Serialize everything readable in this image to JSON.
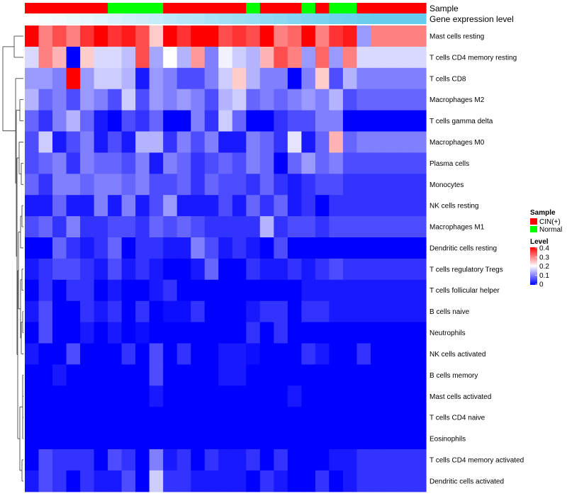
{
  "chart_data": {
    "type": "heatmap",
    "annotation_labels": [
      "Sample",
      "Gene expression level"
    ],
    "legend": {
      "sample_title": "Sample",
      "sample_entries": [
        {
          "label": "CIN(+)",
          "color": "#ff0000"
        },
        {
          "label": "Normal",
          "color": "#00ff00"
        }
      ],
      "level_title": "Level",
      "level_ticks": [
        "0.4",
        "0.3",
        "0.2",
        "0.1",
        "0"
      ],
      "level_range": [
        0,
        0.4
      ],
      "colors": {
        "low": "#0000ff",
        "mid": "#ffffff",
        "high": "#ff0000"
      }
    },
    "sample_groups": [
      "C",
      "C",
      "C",
      "C",
      "C",
      "C",
      "N",
      "N",
      "N",
      "N",
      "C",
      "C",
      "C",
      "C",
      "C",
      "C",
      "N",
      "C",
      "C",
      "C",
      "N",
      "C",
      "N",
      "N",
      "C",
      "C",
      "C",
      "C",
      "C"
    ],
    "expression_level": [
      0.0,
      0.02,
      0.03,
      0.05,
      0.06,
      0.08,
      0.1,
      0.12,
      0.13,
      0.15,
      0.17,
      0.19,
      0.2,
      0.22,
      0.24,
      0.25,
      0.27,
      0.29,
      0.3,
      0.32,
      0.34,
      0.35,
      0.37,
      0.38,
      0.39,
      0.4,
      0.4,
      0.4,
      0.4
    ],
    "rows": [
      {
        "name": "Mast cells resting",
        "values": [
          0.4,
          0.3,
          0.34,
          0.3,
          0.36,
          0.4,
          0.36,
          0.38,
          0.34,
          0.24,
          0.4,
          0.36,
          0.4,
          0.4,
          0.34,
          0.36,
          0.34,
          0.4,
          0.3,
          0.32,
          0.4,
          0.3,
          0.36,
          0.38,
          0.12,
          0.3,
          0.3,
          0.3,
          0.3
        ]
      },
      {
        "name": "T cells CD4 memory resting",
        "values": [
          0.17,
          0.3,
          0.26,
          0.0,
          0.24,
          0.17,
          0.17,
          0.15,
          0.34,
          0.13,
          0.2,
          0.14,
          0.28,
          0.1,
          0.19,
          0.16,
          0.14,
          0.26,
          0.34,
          0.3,
          0.12,
          0.32,
          0.12,
          0.3,
          0.17,
          0.17,
          0.17,
          0.17,
          0.17
        ]
      },
      {
        "name": "T cells CD8",
        "values": [
          0.12,
          0.12,
          0.1,
          0.4,
          0.12,
          0.16,
          0.16,
          0.14,
          0.02,
          0.12,
          0.1,
          0.06,
          0.06,
          0.1,
          0.16,
          0.24,
          0.14,
          0.1,
          0.1,
          0.0,
          0.1,
          0.24,
          0.06,
          0.14,
          0.1,
          0.1,
          0.1,
          0.1,
          0.1
        ]
      },
      {
        "name": "Macrophages M2",
        "values": [
          0.14,
          0.08,
          0.1,
          0.06,
          0.12,
          0.1,
          0.06,
          0.16,
          0.06,
          0.12,
          0.1,
          0.12,
          0.1,
          0.06,
          0.14,
          0.16,
          0.08,
          0.1,
          0.08,
          0.1,
          0.12,
          0.1,
          0.14,
          0.06,
          0.08,
          0.08,
          0.08,
          0.08,
          0.08
        ]
      },
      {
        "name": "T cells gamma delta",
        "values": [
          0.08,
          0.04,
          0.1,
          0.14,
          0.08,
          0.02,
          0.0,
          0.06,
          0.04,
          0.08,
          0.0,
          0.0,
          0.1,
          0.04,
          0.16,
          0.08,
          0.0,
          0.0,
          0.04,
          0.06,
          0.06,
          0.1,
          0.1,
          0.0,
          0.0,
          0.0,
          0.0,
          0.0,
          0.0
        ]
      },
      {
        "name": "Macrophages M0",
        "values": [
          0.06,
          0.16,
          0.02,
          0.06,
          0.1,
          0.02,
          0.06,
          0.02,
          0.14,
          0.14,
          0.04,
          0.1,
          0.06,
          0.1,
          0.02,
          0.02,
          0.1,
          0.08,
          0.04,
          0.18,
          0.02,
          0.08,
          0.26,
          0.08,
          0.1,
          0.1,
          0.1,
          0.1,
          0.1
        ]
      },
      {
        "name": "Plasma cells",
        "values": [
          0.06,
          0.08,
          0.1,
          0.04,
          0.1,
          0.08,
          0.08,
          0.06,
          0.1,
          0.02,
          0.1,
          0.08,
          0.04,
          0.06,
          0.08,
          0.06,
          0.1,
          0.08,
          0.0,
          0.08,
          0.12,
          0.08,
          0.1,
          0.06,
          0.06,
          0.06,
          0.06,
          0.06,
          0.06
        ]
      },
      {
        "name": "Monocytes",
        "values": [
          0.08,
          0.04,
          0.1,
          0.1,
          0.08,
          0.1,
          0.1,
          0.08,
          0.1,
          0.06,
          0.06,
          0.08,
          0.04,
          0.08,
          0.06,
          0.06,
          0.04,
          0.08,
          0.04,
          0.02,
          0.04,
          0.06,
          0.06,
          0.04,
          0.04,
          0.04,
          0.04,
          0.04,
          0.04
        ]
      },
      {
        "name": "NK cells resting",
        "values": [
          0.02,
          0.02,
          0.08,
          0.02,
          0.02,
          0.1,
          0.02,
          0.1,
          0.02,
          0.06,
          0.12,
          0.02,
          0.02,
          0.02,
          0.06,
          0.02,
          0.08,
          0.04,
          0.08,
          0.02,
          0.04,
          0.0,
          0.04,
          0.04,
          0.04,
          0.04,
          0.04,
          0.04,
          0.04
        ]
      },
      {
        "name": "Macrophages M1",
        "values": [
          0.06,
          0.08,
          0.04,
          0.1,
          0.04,
          0.04,
          0.06,
          0.06,
          0.04,
          0.08,
          0.06,
          0.08,
          0.06,
          0.04,
          0.04,
          0.04,
          0.04,
          0.14,
          0.04,
          0.06,
          0.06,
          0.04,
          0.06,
          0.06,
          0.06,
          0.06,
          0.06,
          0.06,
          0.06
        ]
      },
      {
        "name": "Dendritic cells resting",
        "values": [
          0.0,
          0.0,
          0.08,
          0.04,
          0.02,
          0.04,
          0.08,
          0.0,
          0.04,
          0.04,
          0.02,
          0.02,
          0.1,
          0.06,
          0.02,
          0.04,
          0.02,
          0.0,
          0.06,
          0.0,
          0.0,
          0.0,
          0.0,
          0.0,
          0.0,
          0.0,
          0.0,
          0.0,
          0.0
        ]
      },
      {
        "name": "T cells regulatory  Tregs",
        "values": [
          0.02,
          0.04,
          0.06,
          0.06,
          0.04,
          0.02,
          0.06,
          0.02,
          0.04,
          0.02,
          0.0,
          0.0,
          0.02,
          0.08,
          0.0,
          0.0,
          0.04,
          0.02,
          0.02,
          0.04,
          0.02,
          0.04,
          0.06,
          0.04,
          0.04,
          0.04,
          0.04,
          0.04,
          0.04
        ]
      },
      {
        "name": "T cells follicular helper",
        "values": [
          0.0,
          0.04,
          0.0,
          0.04,
          0.04,
          0.0,
          0.02,
          0.0,
          0.0,
          0.02,
          0.04,
          0.0,
          0.0,
          0.0,
          0.0,
          0.0,
          0.0,
          0.0,
          0.0,
          0.0,
          0.02,
          0.02,
          0.02,
          0.02,
          0.02,
          0.02,
          0.02,
          0.02,
          0.02
        ]
      },
      {
        "name": "B cells naive",
        "values": [
          0.02,
          0.06,
          0.0,
          0.0,
          0.04,
          0.02,
          0.04,
          0.0,
          0.04,
          0.0,
          0.01,
          0.01,
          0.04,
          0.0,
          0.0,
          0.0,
          0.02,
          0.04,
          0.04,
          0.0,
          0.04,
          0.04,
          0.02,
          0.02,
          0.02,
          0.02,
          0.02,
          0.02,
          0.02
        ]
      },
      {
        "name": "Neutrophils",
        "values": [
          0.0,
          0.06,
          0.0,
          0.0,
          0.02,
          0.0,
          0.02,
          0.0,
          0.01,
          0.0,
          0.0,
          0.0,
          0.0,
          0.0,
          0.0,
          0.0,
          0.04,
          0.0,
          0.04,
          0.0,
          0.0,
          0.0,
          0.0,
          0.0,
          0.0,
          0.0,
          0.0,
          0.0,
          0.0
        ]
      },
      {
        "name": "NK cells activated",
        "values": [
          0.02,
          0.0,
          0.0,
          0.06,
          0.0,
          0.0,
          0.0,
          0.04,
          0.0,
          0.06,
          0.0,
          0.04,
          0.0,
          0.0,
          0.02,
          0.02,
          0.01,
          0.0,
          0.0,
          0.0,
          0.04,
          0.02,
          0.0,
          0.0,
          0.04,
          0.0,
          0.0,
          0.0,
          0.0
        ]
      },
      {
        "name": "B cells memory",
        "values": [
          0.0,
          0.0,
          0.02,
          0.0,
          0.0,
          0.0,
          0.0,
          0.0,
          0.0,
          0.06,
          0.0,
          0.0,
          0.0,
          0.0,
          0.02,
          0.02,
          0.0,
          0.0,
          0.0,
          0.0,
          0.0,
          0.0,
          0.0,
          0.0,
          0.0,
          0.0,
          0.0,
          0.0,
          0.0
        ]
      },
      {
        "name": "Mast cells activated",
        "values": [
          0.0,
          0.0,
          0.0,
          0.0,
          0.0,
          0.0,
          0.0,
          0.0,
          0.0,
          0.02,
          0.0,
          0.0,
          0.0,
          0.0,
          0.0,
          0.0,
          0.0,
          0.0,
          0.0,
          0.02,
          0.0,
          0.0,
          0.0,
          0.0,
          0.0,
          0.0,
          0.0,
          0.0,
          0.0
        ]
      },
      {
        "name": "T cells CD4 naive",
        "values": [
          0.0,
          0.0,
          0.0,
          0.0,
          0.0,
          0.0,
          0.0,
          0.0,
          0.0,
          0.0,
          0.0,
          0.0,
          0.0,
          0.0,
          0.0,
          0.0,
          0.0,
          0.0,
          0.0,
          0.0,
          0.0,
          0.0,
          0.0,
          0.0,
          0.0,
          0.0,
          0.0,
          0.0,
          0.0
        ]
      },
      {
        "name": "Eosinophils",
        "values": [
          0.0,
          0.0,
          0.0,
          0.0,
          0.0,
          0.0,
          0.0,
          0.0,
          0.0,
          0.0,
          0.0,
          0.0,
          0.0,
          0.0,
          0.0,
          0.0,
          0.0,
          0.0,
          0.0,
          0.0,
          0.0,
          0.0,
          0.0,
          0.0,
          0.0,
          0.0,
          0.0,
          0.0,
          0.0
        ]
      },
      {
        "name": "T cells CD4 memory activated",
        "values": [
          0.0,
          0.06,
          0.04,
          0.04,
          0.04,
          0.0,
          0.06,
          0.04,
          0.0,
          0.1,
          0.02,
          0.04,
          0.0,
          0.04,
          0.02,
          0.02,
          0.04,
          0.0,
          0.04,
          0.0,
          0.0,
          0.0,
          0.02,
          0.02,
          0.04,
          0.04,
          0.04,
          0.04,
          0.04
        ]
      },
      {
        "name": "Dendritic cells activated",
        "values": [
          0.02,
          0.06,
          0.04,
          0.0,
          0.04,
          0.02,
          0.02,
          0.06,
          0.0,
          0.16,
          0.04,
          0.04,
          0.02,
          0.02,
          0.02,
          0.02,
          0.0,
          0.04,
          0.02,
          0.0,
          0.0,
          0.04,
          0.0,
          0.02,
          0.04,
          0.04,
          0.04,
          0.04,
          0.04
        ]
      }
    ]
  }
}
